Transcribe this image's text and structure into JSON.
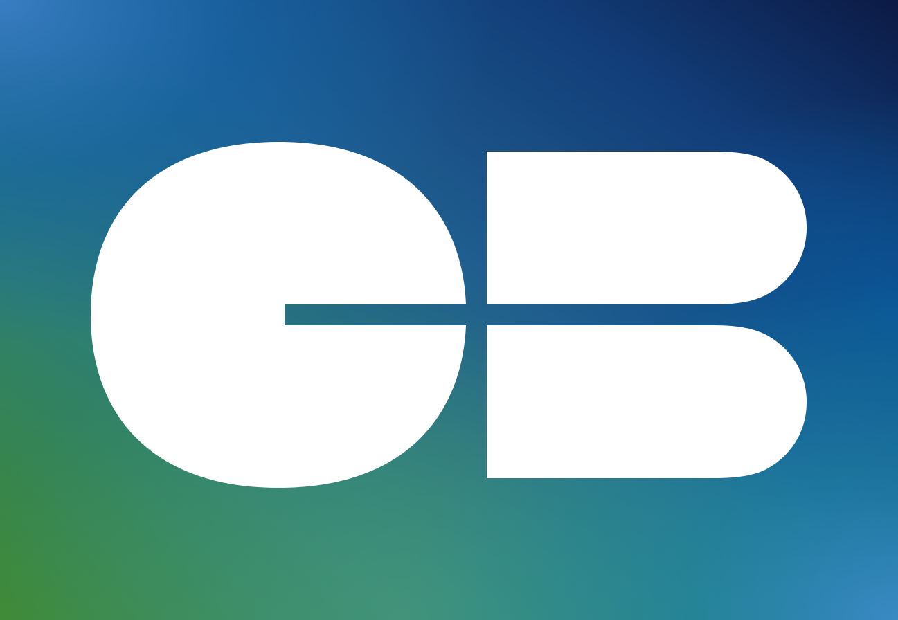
{
  "logo": {
    "text": "CB",
    "shape_color": "#ffffff"
  },
  "background": {
    "colors": {
      "top_left": "#3a7fc4",
      "top_center": "#14609f",
      "top_right": "#0c1a45",
      "mid_right": "#0a5698",
      "bottom_left": "#3f8a2f",
      "bottom_center": "#3f9880",
      "bottom_right": "#3b8cc8",
      "mid_band": "#1f6c8e"
    }
  }
}
